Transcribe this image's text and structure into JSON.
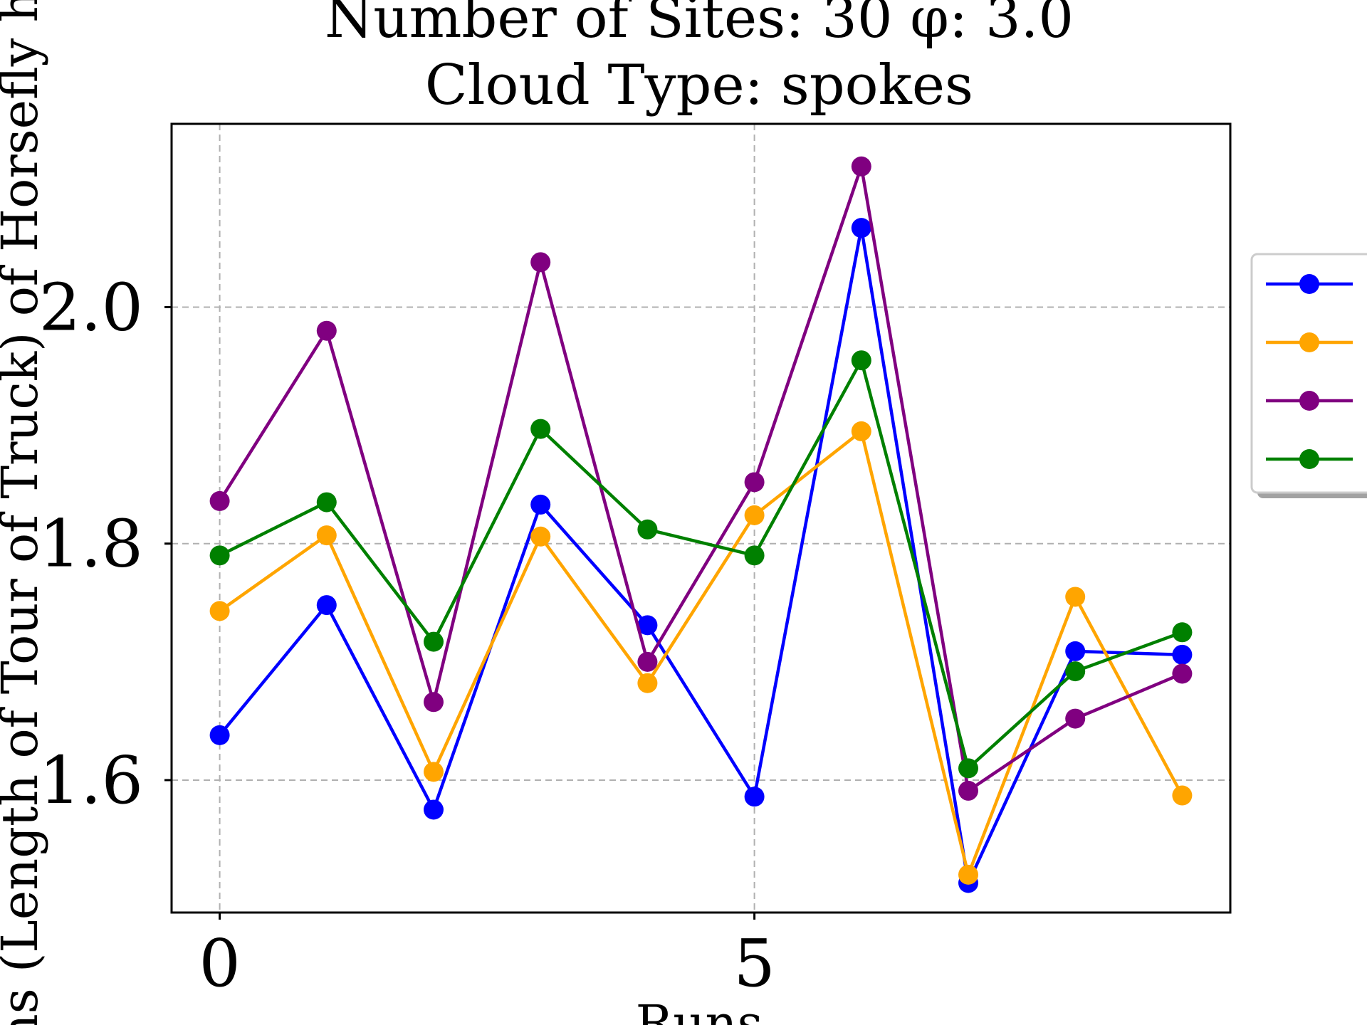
{
  "chart_data": {
    "type": "line",
    "title": "Number of Sites: 30 φ: 3.0",
    "subtitle": "Cloud Type: spokes",
    "xlabel": "Runs",
    "ylabel": "ans (Length of Tour of Truck) of Horsefly he",
    "x": [
      0,
      1,
      2,
      3,
      4,
      5,
      6,
      7,
      8,
      9
    ],
    "xlim": [
      -0.45,
      9.45
    ],
    "ylim": [
      1.488,
      2.155
    ],
    "xticks": [
      0,
      5
    ],
    "xtick_labels": [
      "0",
      "5"
    ],
    "yticks": [
      1.6,
      1.8,
      2.0
    ],
    "ytick_labels": [
      "1.6",
      "1.8",
      "2.0"
    ],
    "grid": true,
    "legend_position": "right",
    "series": [
      {
        "color": "#0000ff",
        "values": [
          1.638,
          1.748,
          1.575,
          1.833,
          1.731,
          1.586,
          2.067,
          1.513,
          1.709,
          1.706
        ]
      },
      {
        "color": "#ffa500",
        "values": [
          1.743,
          1.807,
          1.607,
          1.806,
          1.682,
          1.824,
          1.895,
          1.52,
          1.755,
          1.587
        ]
      },
      {
        "color": "#800080",
        "values": [
          1.836,
          1.98,
          1.666,
          2.038,
          1.7,
          1.852,
          2.119,
          1.591,
          1.652,
          1.69
        ]
      },
      {
        "color": "#008000",
        "values": [
          1.79,
          1.835,
          1.717,
          1.897,
          1.812,
          1.79,
          1.955,
          1.61,
          1.692,
          1.725
        ]
      }
    ]
  }
}
